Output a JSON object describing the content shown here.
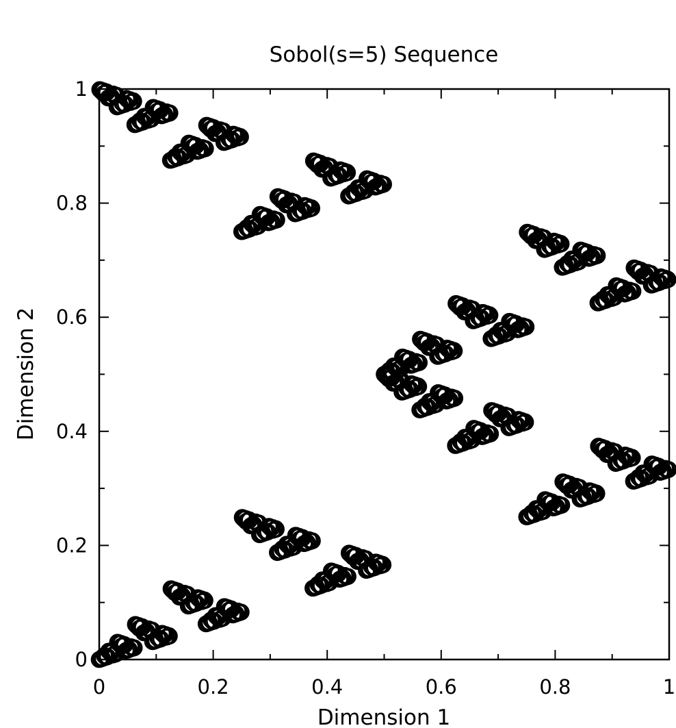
{
  "chart_data": {
    "type": "scatter",
    "title": "Sobol(s=5) Sequence",
    "xlabel": "Dimension 1",
    "ylabel": "Dimension 2",
    "xlim": [
      0,
      1
    ],
    "ylim": [
      0,
      1
    ],
    "xticks": [
      "0",
      "0.2",
      "0.4",
      "0.6",
      "0.8",
      "1"
    ],
    "yticks": [
      "0",
      "0.2",
      "0.4",
      "0.6",
      "0.8",
      "1"
    ],
    "grid": false,
    "marker": "open-circle",
    "point_count": 1024
  }
}
